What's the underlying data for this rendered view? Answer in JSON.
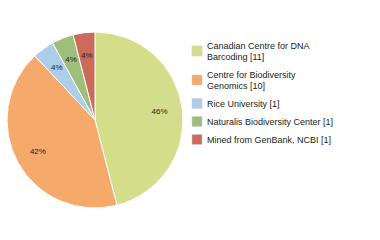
{
  "chart_data": {
    "type": "pie",
    "categories": [
      "Canadian Centre for DNA\nBarcoding [11]",
      "Centre for Biodiversity\nGenomics [10]",
      "Rice University [1]",
      "Naturalis Biodiversity Center [1]",
      "Mined from GenBank, NCBI [1]"
    ],
    "values": [
      46,
      42,
      4,
      4,
      4
    ],
    "value_labels": [
      "46%",
      "42%",
      "4%",
      "4%",
      "4%"
    ],
    "colors": [
      "#d4de8a",
      "#f5a96a",
      "#aecde8",
      "#9dbf7a",
      "#cc6b5a"
    ],
    "data_labels": true,
    "legend": "right"
  }
}
